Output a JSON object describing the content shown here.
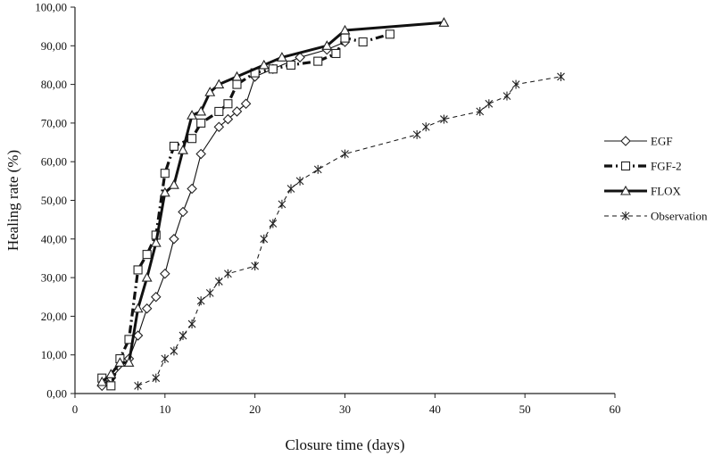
{
  "chart_data": {
    "type": "line",
    "title": "",
    "xlabel": "Closure time (days)",
    "ylabel": "Healing  rate (%)",
    "xlim": [
      0,
      60
    ],
    "ylim": [
      0,
      100
    ],
    "x_ticks": [
      "0",
      "10",
      "20",
      "30",
      "40",
      "50",
      "60"
    ],
    "y_ticks": [
      "0,00",
      "10,00",
      "20,00",
      "30,00",
      "40,00",
      "50,00",
      "60,00",
      "70,00",
      "80,00",
      "90,00",
      "100,00"
    ],
    "grid": false,
    "legend_position": "right",
    "series": [
      {
        "name": "EGF",
        "line": "solid-thin",
        "marker": "diamond",
        "points": [
          [
            3,
            2
          ],
          [
            4,
            4
          ],
          [
            6,
            9
          ],
          [
            7,
            15
          ],
          [
            8,
            22
          ],
          [
            9,
            25
          ],
          [
            10,
            31
          ],
          [
            11,
            40
          ],
          [
            12,
            47
          ],
          [
            13,
            53
          ],
          [
            14,
            62
          ],
          [
            16,
            69
          ],
          [
            17,
            71
          ],
          [
            18,
            73
          ],
          [
            19,
            75
          ],
          [
            20,
            82
          ],
          [
            22,
            84
          ],
          [
            25,
            87
          ],
          [
            28,
            89
          ],
          [
            30,
            91
          ]
        ]
      },
      {
        "name": "FGF-2",
        "line": "dash-dot-thick",
        "marker": "square",
        "points": [
          [
            3,
            4
          ],
          [
            4,
            2
          ],
          [
            5,
            9
          ],
          [
            6,
            14
          ],
          [
            7,
            32
          ],
          [
            8,
            36
          ],
          [
            9,
            41
          ],
          [
            10,
            57
          ],
          [
            11,
            64
          ],
          [
            13,
            66
          ],
          [
            14,
            70
          ],
          [
            16,
            73
          ],
          [
            17,
            75
          ],
          [
            18,
            80
          ],
          [
            20,
            83
          ],
          [
            22,
            84
          ],
          [
            24,
            85
          ],
          [
            27,
            86
          ],
          [
            29,
            88
          ],
          [
            30,
            92
          ],
          [
            32,
            91
          ],
          [
            35,
            93
          ]
        ]
      },
      {
        "name": "FLOX",
        "line": "solid-thick",
        "marker": "triangle",
        "points": [
          [
            3,
            3
          ],
          [
            4,
            5
          ],
          [
            5,
            8
          ],
          [
            6,
            8
          ],
          [
            7,
            22
          ],
          [
            8,
            30
          ],
          [
            9,
            39
          ],
          [
            10,
            52
          ],
          [
            11,
            54
          ],
          [
            12,
            63
          ],
          [
            13,
            72
          ],
          [
            14,
            73
          ],
          [
            15,
            78
          ],
          [
            16,
            80
          ],
          [
            18,
            82
          ],
          [
            21,
            85
          ],
          [
            23,
            87
          ],
          [
            28,
            90
          ],
          [
            30,
            94
          ],
          [
            41,
            96
          ]
        ]
      },
      {
        "name": "Observation",
        "line": "dashed-thin",
        "marker": "star",
        "points": [
          [
            7,
            2
          ],
          [
            9,
            4
          ],
          [
            10,
            9
          ],
          [
            11,
            11
          ],
          [
            12,
            15
          ],
          [
            13,
            18
          ],
          [
            14,
            24
          ],
          [
            15,
            26
          ],
          [
            16,
            29
          ],
          [
            17,
            31
          ],
          [
            20,
            33
          ],
          [
            21,
            40
          ],
          [
            22,
            44
          ],
          [
            23,
            49
          ],
          [
            24,
            53
          ],
          [
            25,
            55
          ],
          [
            27,
            58
          ],
          [
            30,
            62
          ],
          [
            38,
            67
          ],
          [
            39,
            69
          ],
          [
            41,
            71
          ],
          [
            45,
            73
          ],
          [
            46,
            75
          ],
          [
            48,
            77
          ],
          [
            49,
            80
          ],
          [
            54,
            82
          ]
        ]
      }
    ]
  }
}
